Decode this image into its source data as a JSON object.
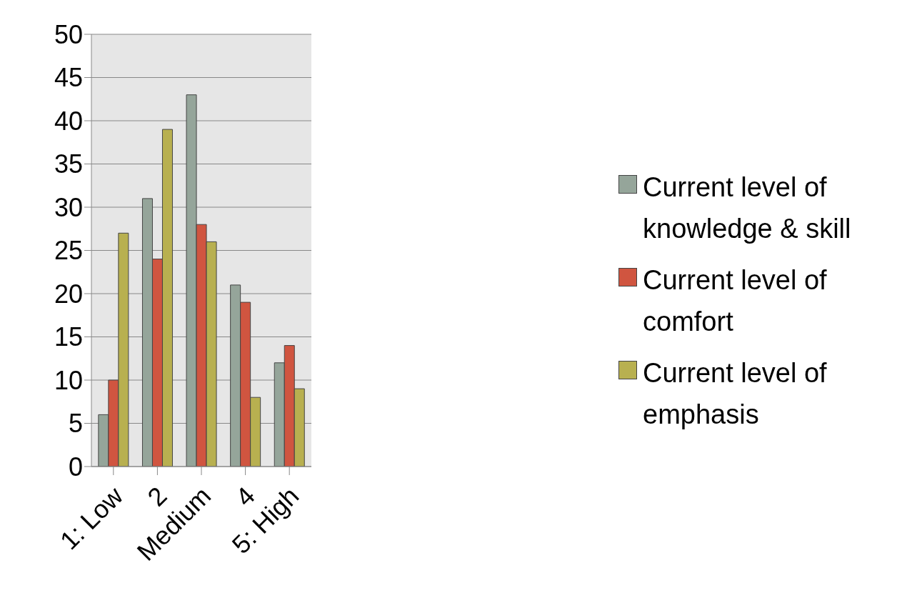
{
  "chart_data": {
    "type": "bar",
    "categories": [
      "1: Low",
      "2",
      "Medium",
      "4",
      "5: High"
    ],
    "series": [
      {
        "name": "Current level of knowledge & skill",
        "color": "#95a59a",
        "values": [
          6,
          31,
          43,
          21,
          12
        ]
      },
      {
        "name": "Current level of comfort",
        "color": "#d05540",
        "values": [
          10,
          24,
          28,
          19,
          14
        ]
      },
      {
        "name": "Current level of emphasis",
        "color": "#b8b050",
        "values": [
          27,
          39,
          26,
          8,
          9
        ]
      }
    ],
    "ylim": [
      0,
      50
    ],
    "yticks": [
      0,
      5,
      10,
      15,
      20,
      25,
      30,
      35,
      40,
      45,
      50
    ],
    "grid": "y",
    "legend": "right"
  }
}
